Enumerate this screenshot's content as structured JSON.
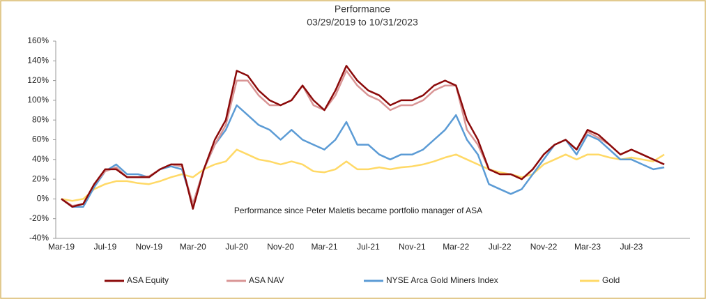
{
  "chart_data": {
    "type": "line",
    "title": "Performance",
    "subtitle": "03/29/2019 to 10/31/2023",
    "annotation": "Performance since Peter Maletis became portfolio manager of ASA",
    "x": [
      "Mar-19",
      "Apr-19",
      "May-19",
      "Jun-19",
      "Jul-19",
      "Aug-19",
      "Sep-19",
      "Oct-19",
      "Nov-19",
      "Dec-19",
      "Jan-20",
      "Feb-20",
      "Mar-20",
      "Apr-20",
      "May-20",
      "Jun-20",
      "Jul-20",
      "Aug-20",
      "Sep-20",
      "Oct-20",
      "Nov-20",
      "Dec-20",
      "Jan-21",
      "Feb-21",
      "Mar-21",
      "Apr-21",
      "May-21",
      "Jun-21",
      "Jul-21",
      "Aug-21",
      "Sep-21",
      "Oct-21",
      "Nov-21",
      "Dec-21",
      "Jan-22",
      "Feb-22",
      "Mar-22",
      "Apr-22",
      "May-22",
      "Jun-22",
      "Jul-22",
      "Aug-22",
      "Sep-22",
      "Oct-22",
      "Nov-22",
      "Dec-22",
      "Jan-23",
      "Feb-23",
      "Mar-23",
      "Apr-23",
      "May-23",
      "Jun-23",
      "Jul-23",
      "Aug-23",
      "Sep-23",
      "Oct-23"
    ],
    "xticks": [
      "Mar-19",
      "Jul-19",
      "Nov-19",
      "Mar-20",
      "Jul-20",
      "Nov-20",
      "Mar-21",
      "Jul-21",
      "Nov-21",
      "Mar-22",
      "Jul-22",
      "Nov-22",
      "Mar-23",
      "Jul-23"
    ],
    "series": [
      {
        "name": "ASA Equity",
        "color": "#8b0a0a",
        "values": [
          0,
          -8,
          -5,
          15,
          30,
          30,
          22,
          22,
          22,
          30,
          35,
          35,
          -10,
          30,
          60,
          80,
          130,
          125,
          110,
          100,
          95,
          100,
          115,
          100,
          90,
          110,
          135,
          120,
          110,
          105,
          95,
          100,
          100,
          105,
          115,
          120,
          115,
          80,
          60,
          30,
          25,
          25,
          20,
          30,
          45,
          55,
          60,
          50,
          70,
          65,
          55,
          45,
          50,
          45,
          40,
          35
        ]
      },
      {
        "name": "ASA NAV",
        "color": "#d99595",
        "values": [
          0,
          -7,
          -5,
          15,
          28,
          32,
          22,
          22,
          23,
          30,
          35,
          33,
          -5,
          30,
          55,
          75,
          120,
          120,
          105,
          95,
          95,
          100,
          115,
          95,
          90,
          105,
          130,
          115,
          105,
          100,
          90,
          95,
          95,
          100,
          110,
          115,
          115,
          70,
          55,
          30,
          25,
          25,
          20,
          30,
          45,
          55,
          60,
          50,
          68,
          62,
          55,
          45,
          50,
          45,
          40,
          35
        ]
      },
      {
        "name": "NYSE Arca Gold Miners Index",
        "color": "#5b9bd5",
        "values": [
          0,
          -8,
          -8,
          12,
          28,
          35,
          25,
          25,
          22,
          30,
          33,
          30,
          -5,
          30,
          55,
          70,
          95,
          85,
          75,
          70,
          60,
          70,
          60,
          55,
          50,
          60,
          78,
          55,
          55,
          45,
          40,
          45,
          45,
          50,
          60,
          70,
          85,
          60,
          45,
          15,
          10,
          5,
          10,
          25,
          40,
          55,
          60,
          45,
          65,
          60,
          50,
          40,
          40,
          35,
          30,
          32
        ]
      },
      {
        "name": "Gold",
        "color": "#ffd966",
        "values": [
          0,
          -2,
          0,
          10,
          15,
          18,
          18,
          16,
          15,
          18,
          22,
          25,
          22,
          30,
          35,
          38,
          50,
          45,
          40,
          38,
          35,
          38,
          35,
          28,
          27,
          30,
          38,
          30,
          30,
          32,
          30,
          32,
          33,
          35,
          38,
          42,
          45,
          40,
          35,
          30,
          27,
          25,
          22,
          25,
          35,
          40,
          45,
          40,
          45,
          45,
          42,
          40,
          42,
          40,
          38,
          45
        ]
      }
    ],
    "ylim": [
      -40,
      160
    ],
    "yticks": [
      {
        "value": -40,
        "label": "-40%"
      },
      {
        "value": -20,
        "label": "-20%"
      },
      {
        "value": 0,
        "label": "0%"
      },
      {
        "value": 20,
        "label": "20%"
      },
      {
        "value": 40,
        "label": "40%"
      },
      {
        "value": 60,
        "label": "60%"
      },
      {
        "value": 80,
        "label": "80%"
      },
      {
        "value": 100,
        "label": "100%"
      },
      {
        "value": 120,
        "label": "120%"
      },
      {
        "value": 140,
        "label": "140%"
      },
      {
        "value": 160,
        "label": "160%"
      }
    ],
    "grid": false
  }
}
